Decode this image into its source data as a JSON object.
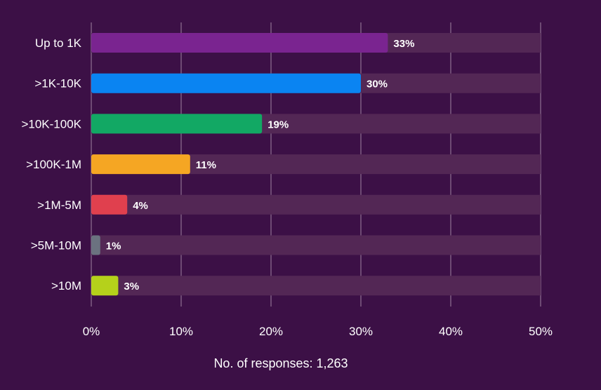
{
  "chart_data": {
    "type": "bar",
    "orientation": "horizontal",
    "categories": [
      "Up to 1K",
      ">1K-10K",
      ">10K-100K",
      ">100K-1M",
      ">1M-5M",
      ">5M-10M",
      ">10M"
    ],
    "values": [
      33,
      30,
      19,
      11,
      4,
      1,
      3
    ],
    "value_labels": [
      "33%",
      "30%",
      "19%",
      "11%",
      "4%",
      "1%",
      "3%"
    ],
    "colors": [
      "#7a2490",
      "#0a84f2",
      "#12a864",
      "#f5a623",
      "#e0404e",
      "#6b7280",
      "#b5d11b"
    ],
    "track_color": "#532755",
    "grid_color": "#6e4a74",
    "background": "#3c1046",
    "xlim": [
      0,
      50
    ],
    "xticks": [
      0,
      10,
      20,
      30,
      40,
      50
    ],
    "xtick_labels": [
      "0%",
      "10%",
      "20%",
      "30%",
      "40%",
      "50%"
    ],
    "grid": true,
    "legend": "none",
    "footnote": "No. of responses: 1,263"
  }
}
